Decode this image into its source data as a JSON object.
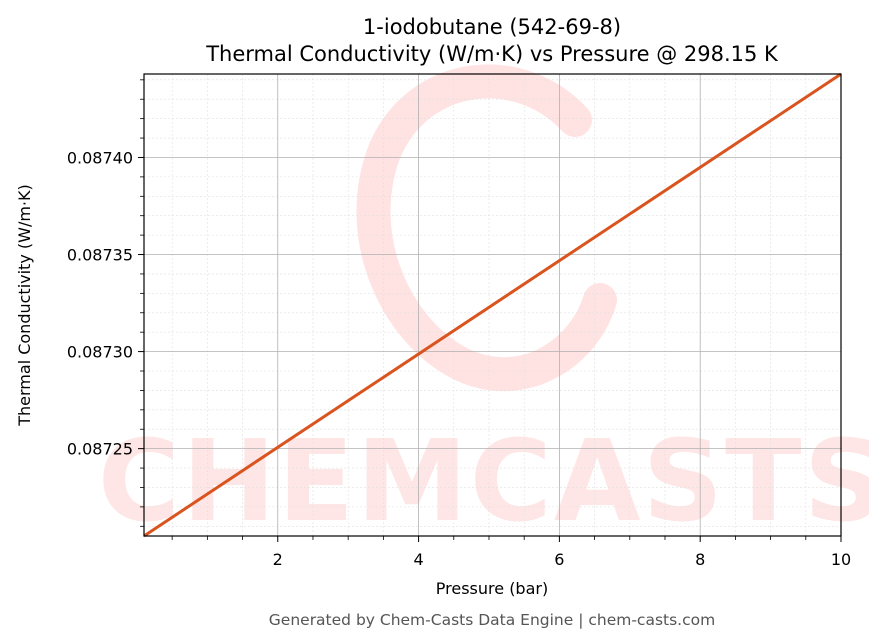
{
  "chart_data": {
    "type": "line",
    "title_line1": "1-iodobutane (542-69-8)",
    "title_line2": "Thermal Conductivity (W/m·K) vs Pressure @ 298.15 K",
    "xlabel": "Pressure (bar)",
    "ylabel": "Thermal Conductivity (W/m·K)",
    "xlim": [
      0.1,
      10
    ],
    "ylim": [
      0.087205,
      0.087443
    ],
    "x_ticks": [
      2,
      4,
      6,
      8,
      10
    ],
    "x_tick_labels": [
      "2",
      "4",
      "6",
      "8",
      "10"
    ],
    "y_ticks": [
      0.08725,
      0.0873,
      0.08735,
      0.0874
    ],
    "y_tick_labels": [
      "0.08725",
      "0.08730",
      "0.08735",
      "0.08740"
    ],
    "grid": true,
    "series": [
      {
        "color": "#d9541e",
        "x": [
          0.1,
          10
        ],
        "y": [
          0.087205,
          0.087443
        ]
      }
    ]
  },
  "watermark": "CHEMCASTS",
  "footer": "Generated by Chem-Casts Data Engine | chem-casts.com",
  "colors": {
    "line": "#d9541e",
    "watermark": "#ffe6e6",
    "grid_major": "#b0b0b0",
    "grid_minor": "#e0e0e0"
  }
}
